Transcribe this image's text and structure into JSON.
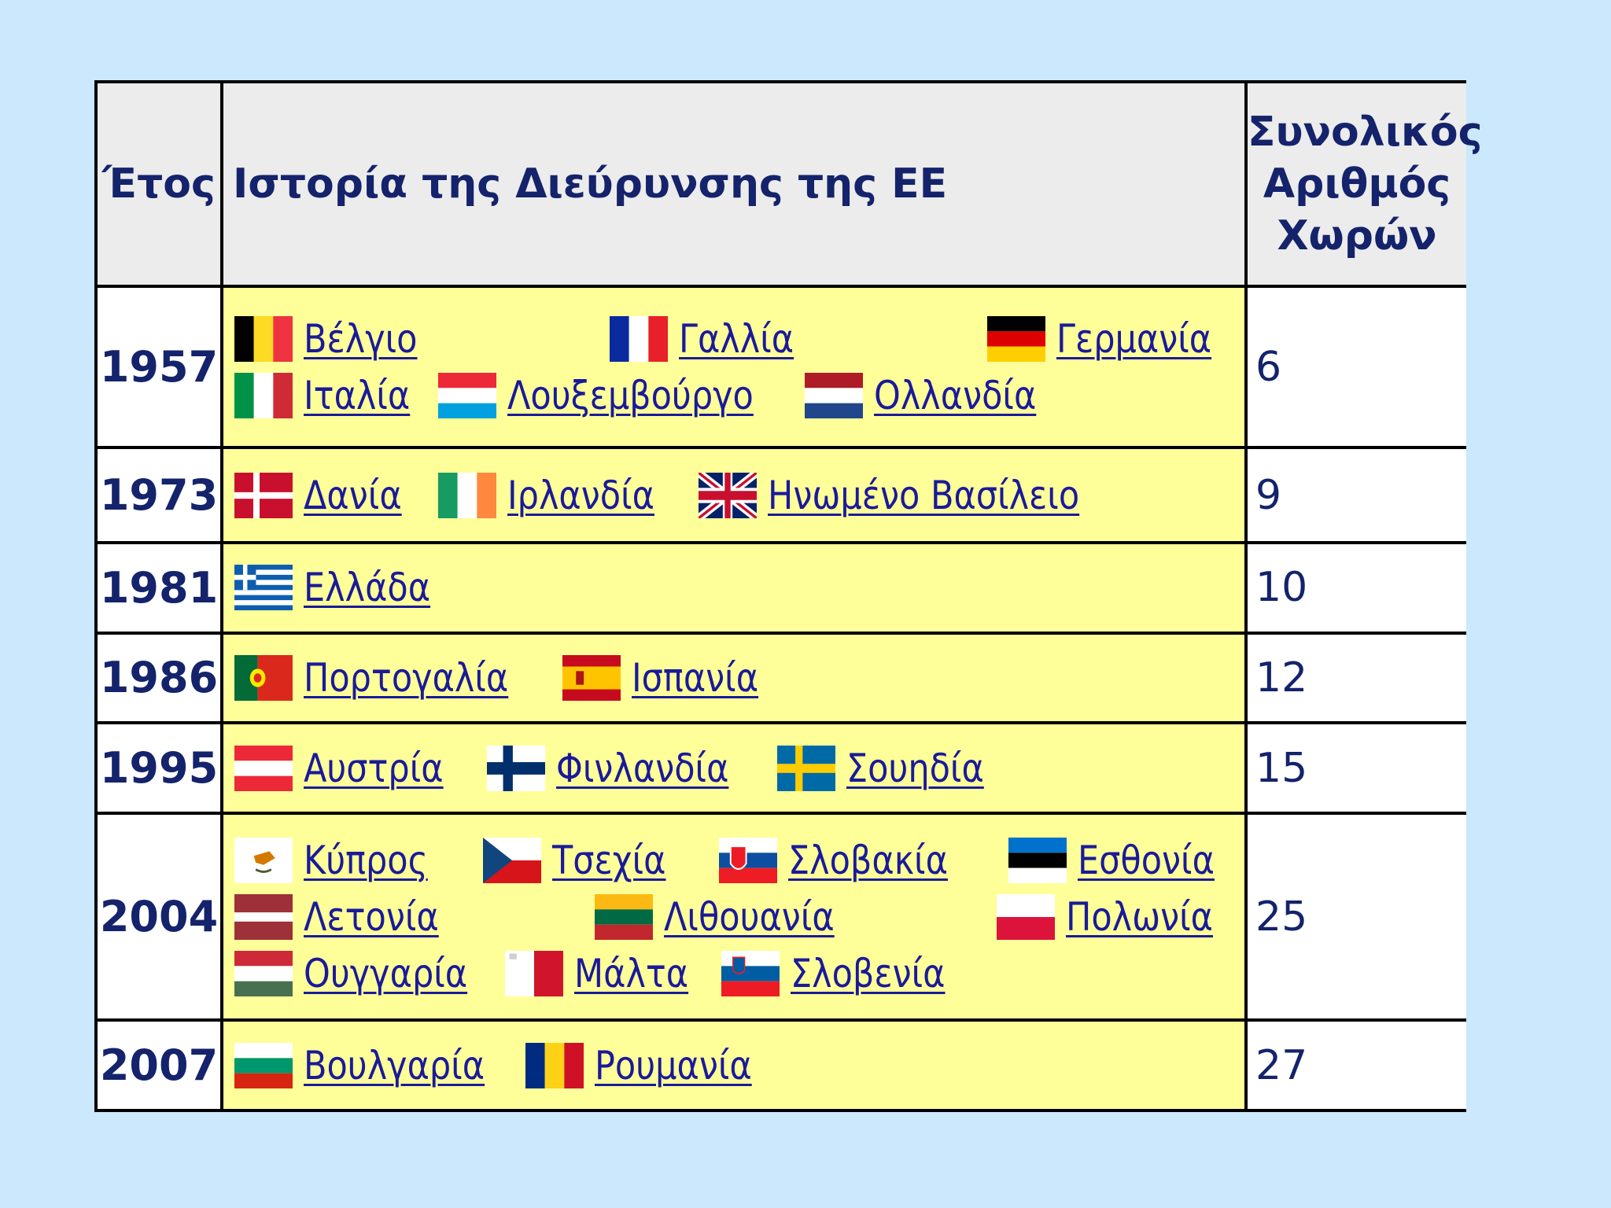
{
  "header": {
    "year": "Έτος",
    "history": "Ιστορία της Διεύρυνσης της ΕΕ",
    "total_line1": "Συνολικός",
    "total_line2": "Αριθμός",
    "total_line3": "Χωρών"
  },
  "rows": [
    {
      "year": "1957",
      "total": "6",
      "countries": [
        {
          "name": "Βέλγιο",
          "flag": "belgium-flag"
        },
        {
          "name": "Γαλλία",
          "flag": "france-flag"
        },
        {
          "name": "Γερμανία",
          "flag": "germany-flag"
        },
        {
          "name": "Ιταλία",
          "flag": "italy-flag"
        },
        {
          "name": "Λουξεμβούργο",
          "flag": "luxembourg-flag"
        },
        {
          "name": "Ολλανδία",
          "flag": "netherlands-flag"
        }
      ]
    },
    {
      "year": "1973",
      "total": "9",
      "countries": [
        {
          "name": "Δανία",
          "flag": "denmark-flag"
        },
        {
          "name": "Ιρλανδία",
          "flag": "ireland-flag"
        },
        {
          "name": "Ηνωμένο Βασίλειο",
          "flag": "uk-flag"
        }
      ]
    },
    {
      "year": "1981",
      "total": "10",
      "countries": [
        {
          "name": "Ελλάδα",
          "flag": "greece-flag"
        }
      ]
    },
    {
      "year": "1986",
      "total": "12",
      "countries": [
        {
          "name": "Πορτογαλία",
          "flag": "portugal-flag"
        },
        {
          "name": "Ισπανία",
          "flag": "spain-flag"
        }
      ]
    },
    {
      "year": "1995",
      "total": "15",
      "countries": [
        {
          "name": "Αυστρία",
          "flag": "austria-flag"
        },
        {
          "name": "Φινλανδία",
          "flag": "finland-flag"
        },
        {
          "name": "Σουηδία",
          "flag": "sweden-flag"
        }
      ]
    },
    {
      "year": "2004",
      "total": "25",
      "countries": [
        {
          "name": "Κύπρος",
          "flag": "cyprus-flag"
        },
        {
          "name": "Τσεχία",
          "flag": "czech-flag"
        },
        {
          "name": "Σλοβακία",
          "flag": "slovakia-flag"
        },
        {
          "name": "Εσθονία",
          "flag": "estonia-flag"
        },
        {
          "name": "Λετονία",
          "flag": "latvia-flag"
        },
        {
          "name": "Λιθουανία",
          "flag": "lithuania-flag"
        },
        {
          "name": "Πολωνία",
          "flag": "poland-flag"
        },
        {
          "name": "Ουγγαρία",
          "flag": "hungary-flag"
        },
        {
          "name": "Μάλτα",
          "flag": "malta-flag"
        },
        {
          "name": "Σλοβενία",
          "flag": "slovenia-flag"
        }
      ]
    },
    {
      "year": "2007",
      "total": "27",
      "countries": [
        {
          "name": "Βουλγαρία",
          "flag": "bulgaria-flag"
        },
        {
          "name": "Ρουμανία",
          "flag": "romania-flag"
        }
      ]
    }
  ],
  "colors": {
    "background": "#cbe8fc",
    "header_fill": "#ececec",
    "countries_fill": "#ffff99",
    "text_navy": "#14236b",
    "link": "#1a1a9a"
  }
}
